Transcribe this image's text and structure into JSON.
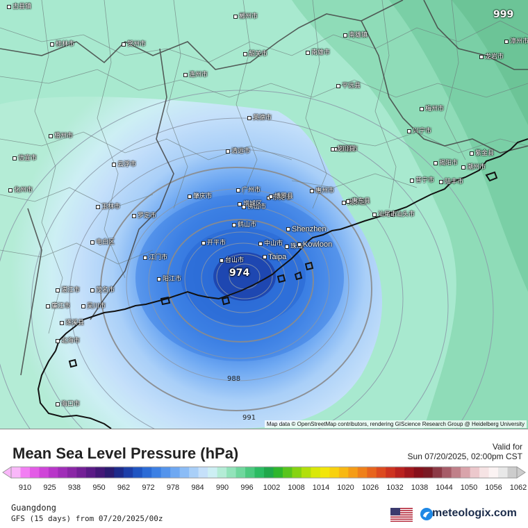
{
  "map": {
    "attribution": "Map data © OpenStreetMap contributors, rendering GIScience Research Group @ Heidelberg University",
    "low_center_value": "974",
    "corner_value": "999",
    "isobar_labels": [
      "988",
      "991"
    ],
    "cities": [
      {
        "name": "古县镇"
      },
      {
        "name": "郴州市"
      },
      {
        "name": "桂林市"
      },
      {
        "name": "贺州市"
      },
      {
        "name": "韶关市"
      },
      {
        "name": "南雄市"
      },
      {
        "name": "连州市"
      },
      {
        "name": "英德市"
      },
      {
        "name": "清远市"
      },
      {
        "name": "广州市"
      },
      {
        "name": "佛山市"
      },
      {
        "name": "肇庆市"
      },
      {
        "name": "江门市"
      },
      {
        "name": "开平市"
      },
      {
        "name": "台山市"
      },
      {
        "name": "中山市"
      },
      {
        "name": "鹤山市"
      },
      {
        "name": "东莞市"
      },
      {
        "name": "惠州市"
      },
      {
        "name": "河源市"
      },
      {
        "name": "梅州市"
      },
      {
        "name": "汕头市"
      },
      {
        "name": "揭阳市"
      },
      {
        "name": "潮州市"
      },
      {
        "name": "湛江市"
      },
      {
        "name": "茂名市"
      },
      {
        "name": "阳江市"
      },
      {
        "name": "云浮市"
      },
      {
        "name": "罗定市"
      },
      {
        "name": "梧州市"
      },
      {
        "name": "玉林市"
      },
      {
        "name": "北海市"
      },
      {
        "name": "廉江市"
      },
      {
        "name": "吴川市"
      },
      {
        "name": "遂溪县"
      },
      {
        "name": "电白区"
      },
      {
        "name": "海口市"
      },
      {
        "name": "龙岩市"
      },
      {
        "name": "漳州市"
      },
      {
        "name": "兴宁市"
      },
      {
        "name": "汕尾市"
      },
      {
        "name": "博罗县"
      },
      {
        "name": "增城区"
      },
      {
        "name": "信宜市"
      },
      {
        "name": "化州市"
      },
      {
        "name": "普宁市"
      },
      {
        "name": "陆丰市"
      },
      {
        "name": "揭东区"
      },
      {
        "name": "平远县"
      },
      {
        "name": "南雄镇"
      },
      {
        "name": "龙川县"
      },
      {
        "name": "紫金县"
      },
      {
        "name": "惠东县"
      },
      {
        "name": "珠海"
      }
    ],
    "big_cities": [
      {
        "name": "Shenzhen"
      },
      {
        "name": "Kowloon"
      },
      {
        "name": "Taipa"
      }
    ]
  },
  "legend": {
    "title": "Mean Sea Level Pressure (hPa)",
    "valid_label": "Valid for",
    "valid_time": "Sun 07/20/2025, 02:00pm CST",
    "ticks": [
      "910",
      "925",
      "938",
      "950",
      "962",
      "972",
      "978",
      "984",
      "990",
      "996",
      "1002",
      "1008",
      "1014",
      "1020",
      "1026",
      "1032",
      "1038",
      "1044",
      "1050",
      "1056",
      "1062"
    ],
    "colors": [
      "#f9b7f9",
      "#f27ef3",
      "#e35be6",
      "#cf44d8",
      "#b836c9",
      "#a02db8",
      "#8a26a6",
      "#731f96",
      "#5a1a86",
      "#431777",
      "#2b1a70",
      "#1d2a8a",
      "#1c3ea8",
      "#1f55c2",
      "#2b6bd6",
      "#3c80e4",
      "#5494ec",
      "#6ea8f2",
      "#8bbcf6",
      "#a9cff8",
      "#c5e0fa",
      "#cdeff4",
      "#b4ecd6",
      "#92e3ba",
      "#6fd79d",
      "#4bc97f",
      "#2bbb62",
      "#1fa84a",
      "#2eb62c",
      "#58c51d",
      "#86d311",
      "#b2df0b",
      "#d9e808",
      "#f2e60a",
      "#f8d10e",
      "#f8b812",
      "#f59c16",
      "#ef801a",
      "#e7641d",
      "#dc4a1f",
      "#cd3320",
      "#b9221f",
      "#a0171d",
      "#86101b",
      "#7a1a24",
      "#8c3a46",
      "#a65c68",
      "#c08089",
      "#d9a4ab",
      "#ecc8cc",
      "#f6e3e4",
      "#fbf3f3",
      "#e8e8e8",
      "#cccccc"
    ],
    "region": "Guangdong",
    "model": "GFS (15 days) from 07/20/2025/00z",
    "brand": "meteologix.com"
  }
}
